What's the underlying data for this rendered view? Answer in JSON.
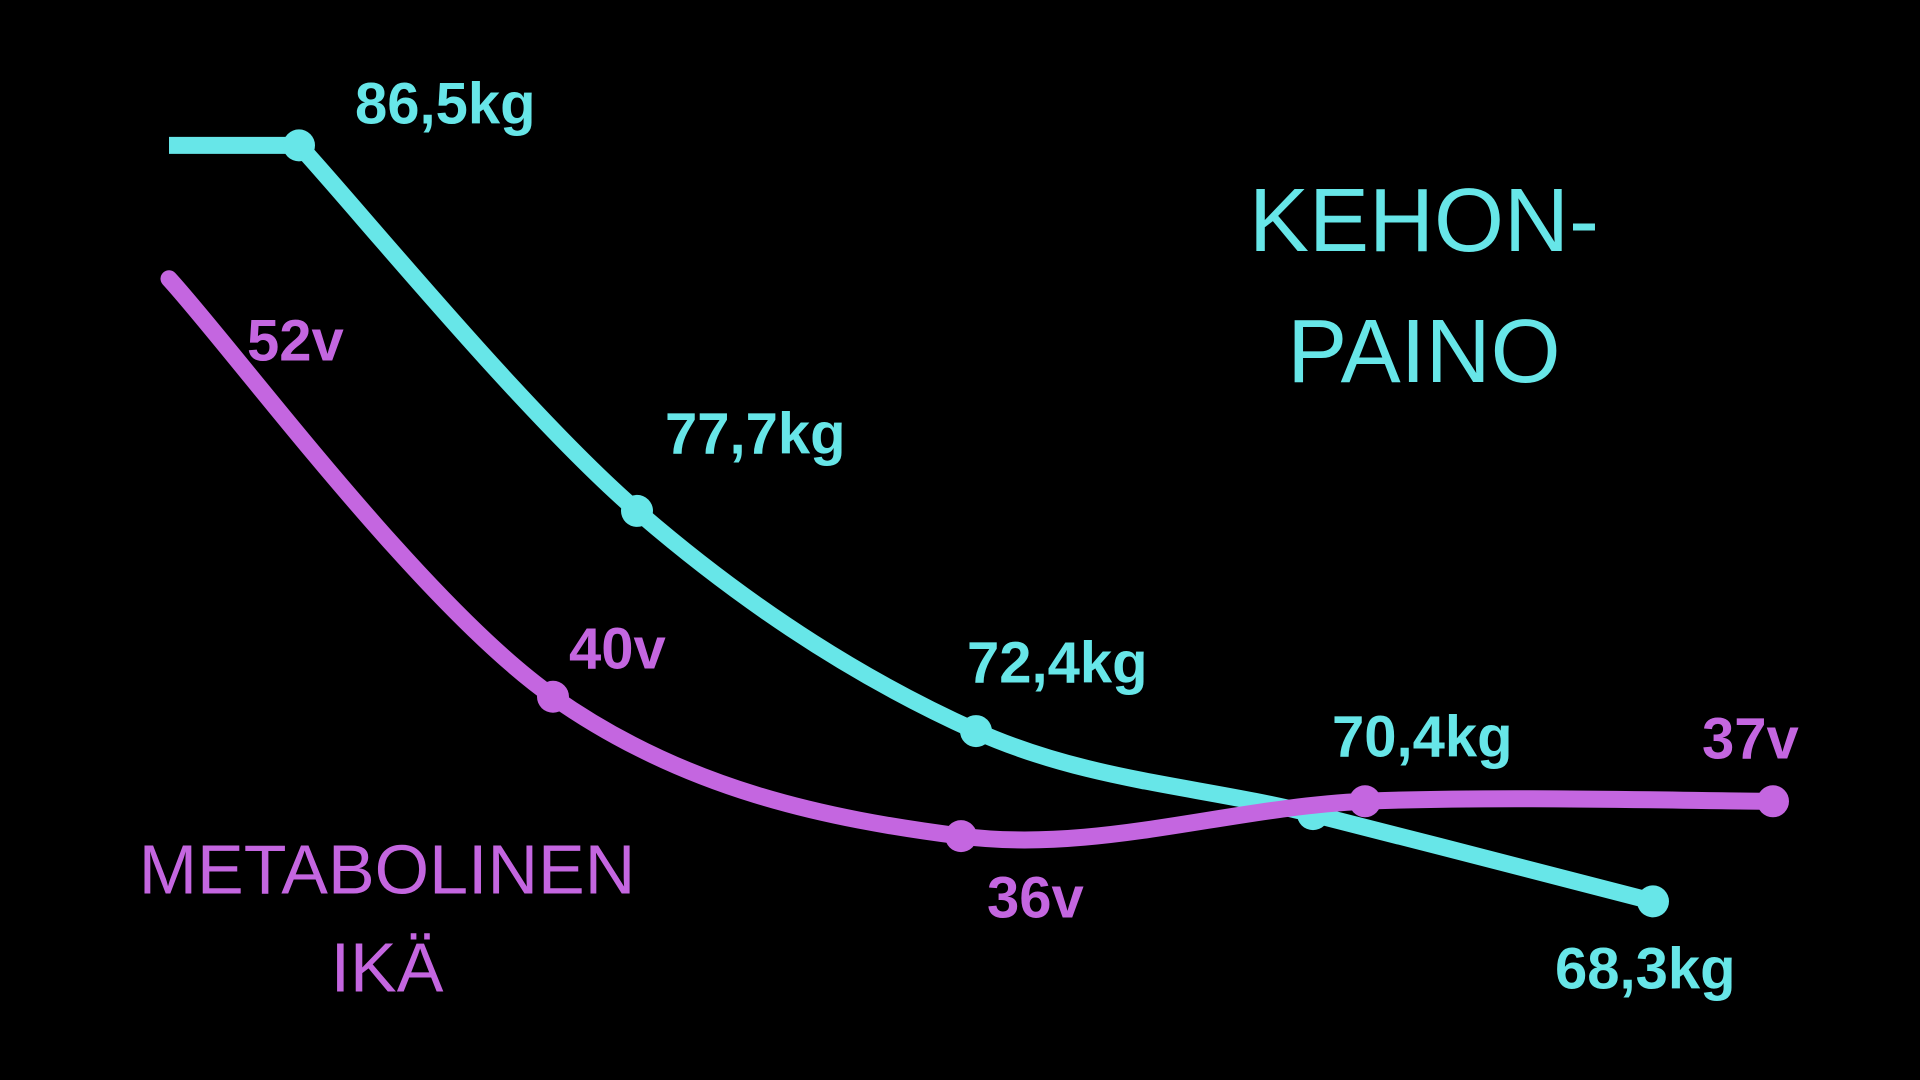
{
  "chart_data": {
    "type": "line",
    "series": [
      {
        "name": "KEHON-PAINO",
        "color": "#67e6e8",
        "values": [
          86.5,
          77.7,
          72.4,
          70.4,
          68.3
        ],
        "value_labels": [
          "86,5kg",
          "77,7kg",
          "72,4kg",
          "70,4kg",
          "68,3kg"
        ]
      },
      {
        "name": "METABOLINEN IKÄ",
        "color": "#c466e0",
        "axis": "y2",
        "values": [
          52,
          40,
          36,
          37,
          37
        ],
        "value_labels": [
          "52v",
          "40v",
          "36v",
          null,
          "37v"
        ]
      }
    ],
    "annotations": [
      [
        "KEHON-",
        "PAINO"
      ],
      [
        "METABOLINEN",
        "IKÄ"
      ]
    ],
    "ylim": [
      64,
      90
    ],
    "y2lim": [
      29,
      60
    ]
  }
}
